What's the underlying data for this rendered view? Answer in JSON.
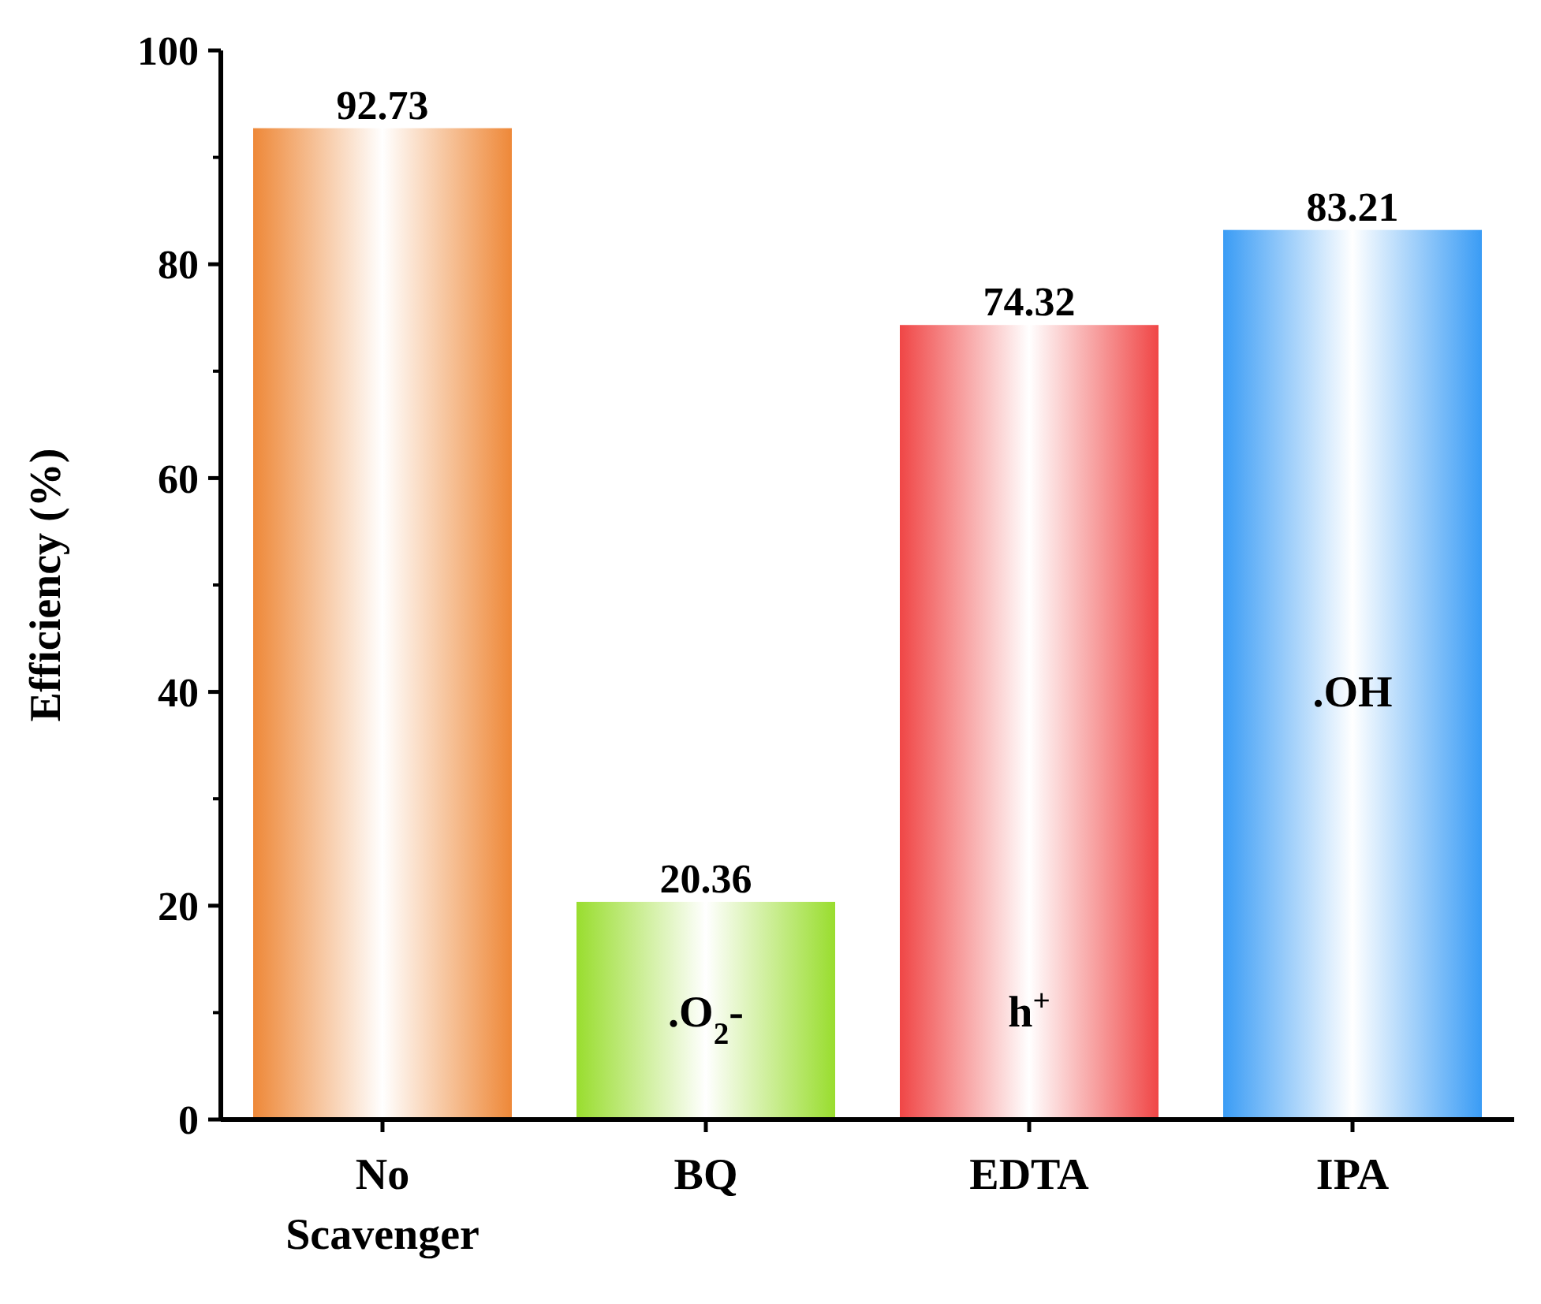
{
  "chart_data": {
    "type": "bar",
    "ylabel": "Efficiency (%)",
    "categories": [
      "No Scavenger",
      "BQ",
      "EDTA",
      "IPA"
    ],
    "values": [
      92.73,
      20.36,
      74.32,
      83.21
    ],
    "colors": [
      "#ee8838",
      "#99dd2e",
      "#f04646",
      "#3a9cf5"
    ],
    "ylim": [
      0,
      100
    ],
    "yticks": [
      0,
      20,
      40,
      60,
      80,
      100
    ],
    "grid": false,
    "data_labels": true,
    "annotations": [
      ".O$_{2}$-",
      "h$^{+}$",
      ".OH"
    ]
  }
}
